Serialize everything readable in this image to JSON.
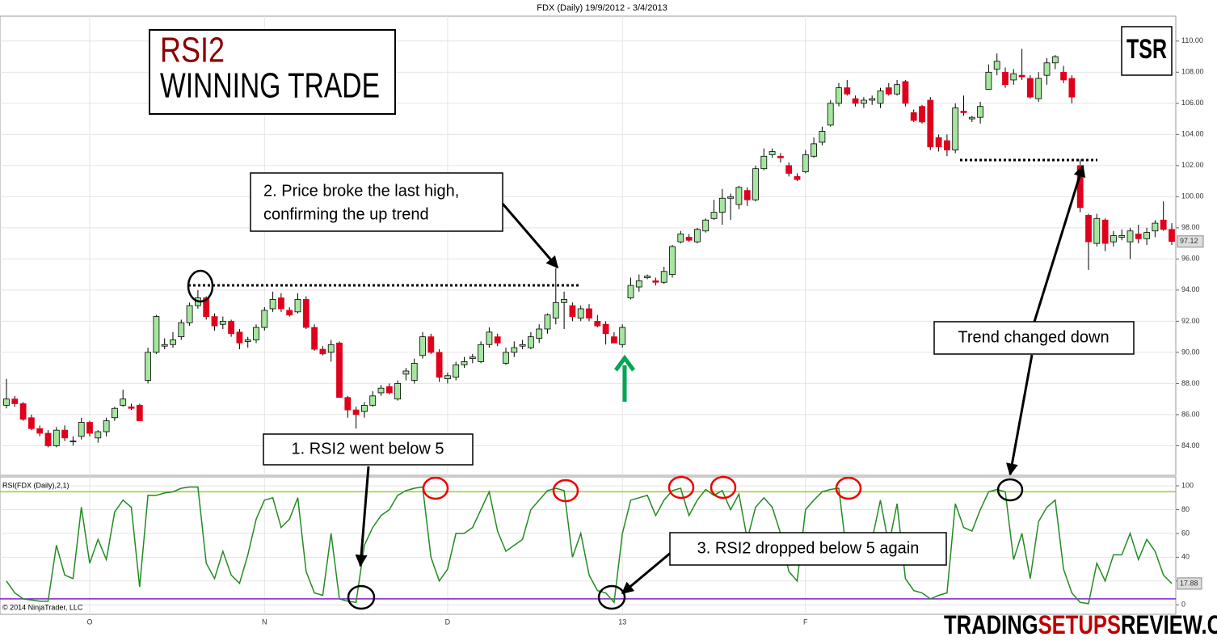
{
  "chart_data": [
    {
      "type": "candlestick",
      "title": "FDX (Daily)  19/9/2012 - 3/4/2013",
      "up_color": "#a6e6a0",
      "down_color": "#e0001b",
      "grid": true,
      "ylim": [
        82.1,
        111.6
      ],
      "yticks": [
        {
          "value": 84,
          "label": "84.00"
        },
        {
          "value": 86,
          "label": "86.00"
        },
        {
          "value": 88,
          "label": "88.00"
        },
        {
          "value": 90,
          "label": "90.00"
        },
        {
          "value": 92,
          "label": "92.00"
        },
        {
          "value": 94,
          "label": "94.00"
        },
        {
          "value": 96,
          "label": "96.00"
        },
        {
          "value": 98,
          "label": "98.00"
        },
        {
          "value": 100,
          "label": "100.00"
        },
        {
          "value": 102,
          "label": "102.00"
        },
        {
          "value": 104,
          "label": "104.00"
        },
        {
          "value": 106,
          "label": "106.00"
        },
        {
          "value": 108,
          "label": "108.00"
        },
        {
          "value": 110,
          "label": "110.00"
        }
      ],
      "ohlc": [
        [
          86.6,
          88.3,
          86.4,
          87.0
        ],
        [
          87.0,
          87.2,
          86.5,
          86.7
        ],
        [
          86.7,
          86.8,
          85.6,
          85.7
        ],
        [
          85.8,
          86.0,
          85.0,
          85.1
        ],
        [
          85.1,
          85.3,
          84.6,
          84.8
        ],
        [
          84.8,
          85.0,
          83.9,
          84.0
        ],
        [
          84.0,
          85.2,
          83.9,
          85.0
        ],
        [
          85.0,
          85.3,
          84.3,
          84.5
        ],
        [
          84.3,
          84.6,
          84.0,
          84.3
        ],
        [
          84.6,
          85.8,
          84.4,
          85.5
        ],
        [
          85.5,
          85.6,
          84.6,
          84.8
        ],
        [
          84.5,
          85.0,
          84.2,
          84.9
        ],
        [
          84.9,
          85.8,
          84.6,
          85.6
        ],
        [
          85.8,
          86.5,
          85.6,
          86.4
        ],
        [
          86.6,
          87.6,
          86.5,
          87.0
        ],
        [
          86.5,
          86.7,
          86.3,
          86.4
        ],
        [
          86.6,
          86.7,
          85.6,
          85.6
        ],
        [
          88.2,
          90.3,
          88.0,
          90.0
        ],
        [
          90.0,
          92.4,
          89.9,
          92.3
        ],
        [
          90.4,
          90.9,
          90.2,
          90.5
        ],
        [
          90.5,
          91.3,
          90.3,
          90.8
        ],
        [
          91.0,
          92.1,
          90.8,
          91.9
        ],
        [
          91.9,
          93.2,
          91.7,
          93.0
        ],
        [
          93.0,
          94.0,
          92.8,
          93.5
        ],
        [
          93.5,
          93.6,
          92.1,
          92.3
        ],
        [
          92.3,
          92.5,
          91.4,
          91.7
        ],
        [
          91.8,
          92.3,
          91.5,
          92.0
        ],
        [
          92.0,
          92.1,
          91.0,
          91.2
        ],
        [
          91.3,
          91.5,
          90.2,
          90.6
        ],
        [
          90.7,
          91.0,
          90.3,
          90.8
        ],
        [
          90.8,
          91.8,
          90.6,
          91.6
        ],
        [
          91.6,
          92.9,
          91.4,
          92.7
        ],
        [
          92.8,
          93.9,
          92.6,
          93.4
        ],
        [
          93.5,
          93.8,
          92.6,
          92.8
        ],
        [
          92.7,
          92.9,
          92.3,
          92.4
        ],
        [
          92.6,
          93.8,
          92.5,
          93.4
        ],
        [
          93.4,
          93.6,
          91.5,
          91.6
        ],
        [
          91.6,
          91.8,
          90.1,
          90.2
        ],
        [
          90.2,
          90.4,
          89.8,
          89.9
        ],
        [
          90.0,
          90.8,
          89.4,
          90.5
        ],
        [
          90.6,
          90.7,
          87.2,
          87.1
        ],
        [
          87.1,
          87.2,
          85.8,
          86.3
        ],
        [
          86.3,
          86.5,
          85.1,
          86.0
        ],
        [
          86.2,
          86.8,
          85.8,
          86.6
        ],
        [
          86.6,
          87.5,
          86.5,
          87.2
        ],
        [
          87.4,
          87.9,
          87.2,
          87.7
        ],
        [
          87.8,
          88.0,
          87.3,
          87.4
        ],
        [
          87.0,
          88.2,
          86.9,
          88.0
        ],
        [
          88.6,
          89.0,
          88.2,
          88.8
        ],
        [
          88.2,
          89.6,
          88.0,
          89.3
        ],
        [
          89.8,
          91.3,
          89.6,
          91.0
        ],
        [
          91.0,
          91.2,
          89.9,
          90.0
        ],
        [
          90.0,
          90.2,
          88.1,
          88.4
        ],
        [
          88.3,
          88.7,
          88.0,
          88.5
        ],
        [
          88.4,
          89.4,
          88.2,
          89.2
        ],
        [
          89.2,
          89.7,
          89.0,
          89.4
        ],
        [
          89.6,
          89.9,
          89.3,
          89.7
        ],
        [
          89.4,
          90.7,
          89.3,
          90.5
        ],
        [
          90.5,
          91.6,
          90.3,
          91.3
        ],
        [
          91.0,
          91.2,
          90.4,
          90.6
        ],
        [
          89.3,
          90.3,
          89.2,
          90.0
        ],
        [
          90.0,
          90.7,
          89.7,
          90.3
        ],
        [
          90.4,
          90.8,
          90.2,
          90.5
        ],
        [
          90.3,
          91.3,
          90.2,
          91.0
        ],
        [
          90.9,
          91.8,
          90.6,
          91.5
        ],
        [
          91.5,
          92.5,
          91.2,
          92.4
        ],
        [
          92.2,
          95.4,
          91.8,
          93.2
        ],
        [
          93.2,
          93.9,
          91.5,
          93.4
        ],
        [
          93.0,
          93.2,
          92.0,
          92.3
        ],
        [
          92.2,
          93.0,
          92.0,
          92.8
        ],
        [
          92.8,
          93.1,
          92.0,
          92.2
        ],
        [
          92.0,
          92.4,
          91.6,
          91.7
        ],
        [
          91.8,
          92.0,
          90.5,
          91.2
        ],
        [
          91.0,
          91.3,
          90.6,
          90.6
        ],
        [
          90.5,
          91.8,
          90.3,
          91.6
        ],
        [
          93.5,
          94.8,
          93.4,
          94.3
        ],
        [
          94.2,
          95.0,
          93.9,
          94.6
        ],
        [
          94.8,
          95.0,
          94.7,
          94.9
        ],
        [
          94.6,
          94.8,
          94.3,
          94.5
        ],
        [
          94.5,
          95.5,
          94.4,
          95.2
        ],
        [
          95.0,
          96.9,
          94.8,
          96.8
        ],
        [
          97.1,
          97.8,
          97.0,
          97.6
        ],
        [
          97.4,
          97.6,
          97.1,
          97.2
        ],
        [
          97.1,
          98.0,
          97.0,
          97.9
        ],
        [
          97.8,
          98.6,
          97.7,
          98.5
        ],
        [
          98.6,
          99.8,
          98.5,
          99.0
        ],
        [
          99.0,
          100.5,
          98.2,
          99.9
        ],
        [
          99.9,
          100.2,
          98.5,
          100.0
        ],
        [
          99.5,
          100.7,
          99.2,
          100.6
        ],
        [
          100.4,
          100.6,
          99.4,
          99.8
        ],
        [
          99.8,
          102.0,
          99.7,
          101.8
        ],
        [
          101.8,
          103.1,
          101.7,
          102.6
        ],
        [
          102.7,
          103.1,
          102.5,
          102.9
        ],
        [
          102.6,
          102.8,
          102.2,
          102.5
        ],
        [
          102.0,
          102.2,
          101.3,
          101.5
        ],
        [
          101.3,
          101.5,
          101.0,
          101.1
        ],
        [
          101.6,
          103.0,
          101.5,
          102.7
        ],
        [
          102.6,
          103.8,
          102.5,
          103.4
        ],
        [
          103.5,
          104.5,
          103.3,
          104.2
        ],
        [
          104.6,
          106.2,
          104.5,
          106.0
        ],
        [
          106.0,
          107.3,
          105.8,
          107.0
        ],
        [
          107.0,
          107.5,
          106.5,
          106.6
        ],
        [
          106.3,
          106.5,
          105.8,
          106.0
        ],
        [
          106.0,
          106.4,
          105.7,
          106.2
        ],
        [
          106.2,
          106.5,
          105.9,
          106.3
        ],
        [
          106.0,
          107.0,
          105.7,
          106.8
        ],
        [
          107.0,
          107.3,
          106.5,
          106.6
        ],
        [
          106.6,
          107.5,
          106.5,
          107.2
        ],
        [
          107.4,
          107.5,
          105.8,
          106.0
        ],
        [
          105.4,
          105.6,
          104.8,
          104.9
        ],
        [
          105.8,
          105.9,
          104.7,
          104.8
        ],
        [
          106.2,
          106.4,
          103.0,
          103.2
        ],
        [
          103.8,
          104.0,
          102.9,
          103.2
        ],
        [
          103.6,
          104.0,
          102.6,
          103.0
        ],
        [
          103.0,
          106.0,
          102.8,
          105.7
        ],
        [
          105.5,
          106.5,
          105.2,
          105.4
        ],
        [
          105.0,
          105.2,
          104.8,
          105.1
        ],
        [
          105.1,
          106.1,
          104.7,
          105.8
        ],
        [
          106.9,
          108.5,
          106.9,
          108.0
        ],
        [
          108.2,
          109.2,
          107.8,
          108.7
        ],
        [
          108.0,
          108.3,
          107.0,
          107.2
        ],
        [
          107.5,
          108.2,
          107.2,
          107.9
        ],
        [
          107.8,
          109.5,
          107.5,
          107.7
        ],
        [
          107.6,
          107.8,
          106.3,
          106.4
        ],
        [
          106.3,
          108.0,
          106.1,
          107.6
        ],
        [
          107.8,
          108.9,
          107.2,
          108.6
        ],
        [
          108.6,
          109.1,
          108.2,
          109.0
        ],
        [
          108.0,
          108.4,
          107.3,
          107.5
        ],
        [
          107.6,
          107.8,
          106.0,
          106.4
        ],
        [
          102.0,
          102.4,
          99.0,
          99.3
        ],
        [
          98.8,
          98.9,
          95.3,
          97.1
        ],
        [
          97.0,
          98.9,
          96.8,
          98.6
        ],
        [
          98.5,
          98.6,
          96.5,
          97.0
        ],
        [
          97.1,
          97.8,
          96.8,
          97.5
        ],
        [
          97.4,
          97.9,
          97.2,
          97.5
        ],
        [
          97.1,
          98.0,
          96.0,
          97.8
        ],
        [
          97.6,
          98.2,
          97.0,
          97.3
        ],
        [
          97.3,
          98.0,
          96.9,
          97.7
        ],
        [
          97.8,
          98.5,
          97.4,
          98.3
        ],
        [
          98.5,
          99.7,
          97.8,
          97.9
        ],
        [
          97.9,
          98.3,
          96.9,
          97.12
        ]
      ]
    },
    {
      "type": "line",
      "title": "RSI(FDX (Daily),2,1)",
      "color": "#228b22",
      "grid": true,
      "ylim": [
        -8,
        107.5
      ],
      "yticks": [
        0,
        20,
        40,
        60,
        80,
        100
      ],
      "levels": [
        95,
        5
      ],
      "level_colors": [
        "#9acd32",
        "#7f1fd0"
      ],
      "categories": [
        null,
        null,
        null,
        null,
        null,
        null,
        null,
        null,
        null,
        null,
        "O",
        null,
        null,
        null,
        null,
        null,
        null,
        null,
        null,
        null,
        null,
        null,
        null,
        null,
        null,
        null,
        null,
        null,
        null,
        null,
        null,
        "N",
        null,
        null,
        null,
        null,
        null,
        null,
        null,
        null,
        null,
        null,
        null,
        null,
        null,
        null,
        null,
        null,
        null,
        null,
        null,
        null,
        null,
        "D",
        null,
        null,
        null,
        null,
        null,
        null,
        null,
        null,
        null,
        null,
        null,
        null,
        null,
        null,
        null,
        null,
        null,
        null,
        null,
        null,
        "13",
        null,
        null,
        null,
        null,
        null,
        null,
        null,
        null,
        null,
        null,
        null,
        null,
        null,
        null,
        null,
        null,
        null,
        null,
        null,
        null,
        null,
        "F",
        null,
        null,
        null,
        null,
        null,
        null,
        null,
        null,
        null,
        null,
        null,
        null,
        null,
        null,
        null,
        null,
        null,
        null,
        null,
        null,
        null,
        null,
        null,
        null,
        null,
        null,
        null,
        null,
        null,
        null,
        null,
        null,
        null,
        null,
        null,
        null,
        null,
        null,
        null,
        null,
        null,
        null,
        null,
        null
      ],
      "values": [
        20,
        10,
        5,
        4,
        3,
        3,
        50,
        25,
        22,
        82,
        35,
        55,
        38,
        78,
        88,
        82,
        15,
        92,
        92,
        94,
        95,
        98,
        99,
        99,
        35,
        22,
        45,
        25,
        18,
        42,
        72,
        88,
        90,
        65,
        72,
        90,
        28,
        10,
        8,
        60,
        5,
        3,
        2,
        50,
        65,
        75,
        80,
        92,
        96,
        98,
        99,
        40,
        20,
        30,
        60,
        60,
        65,
        80,
        95,
        62,
        45,
        50,
        55,
        80,
        88,
        96,
        98,
        96,
        40,
        60,
        25,
        12,
        10,
        2,
        60,
        88,
        90,
        92,
        75,
        88,
        96,
        98,
        75,
        88,
        97,
        92,
        96,
        80,
        93,
        55,
        82,
        90,
        82,
        60,
        28,
        20,
        80,
        88,
        95,
        97,
        98,
        40,
        45,
        55,
        55,
        88,
        50,
        85,
        22,
        12,
        10,
        5,
        8,
        10,
        85,
        65,
        62,
        80,
        95,
        97,
        95,
        38,
        60,
        22,
        70,
        82,
        88,
        30,
        10,
        2,
        1,
        35,
        20,
        42,
        42,
        60,
        38,
        55,
        45,
        25,
        17.88
      ]
    }
  ],
  "annotations": {
    "headline": [
      "RSI2",
      "WINNING TRADE"
    ],
    "logo": "TSR",
    "note_2": [
      "2. Price broke the last high,",
      "confirming the up trend"
    ],
    "note_1": "1. RSI2 went below 5",
    "note_3": "3. RSI2 dropped below 5 again",
    "note_trend": "Trend changed down",
    "copyright": "© 2014 NinjaTrader, LLC",
    "watermark": [
      "TRADING",
      "SETUPS",
      "REVIEW.COM"
    ]
  }
}
